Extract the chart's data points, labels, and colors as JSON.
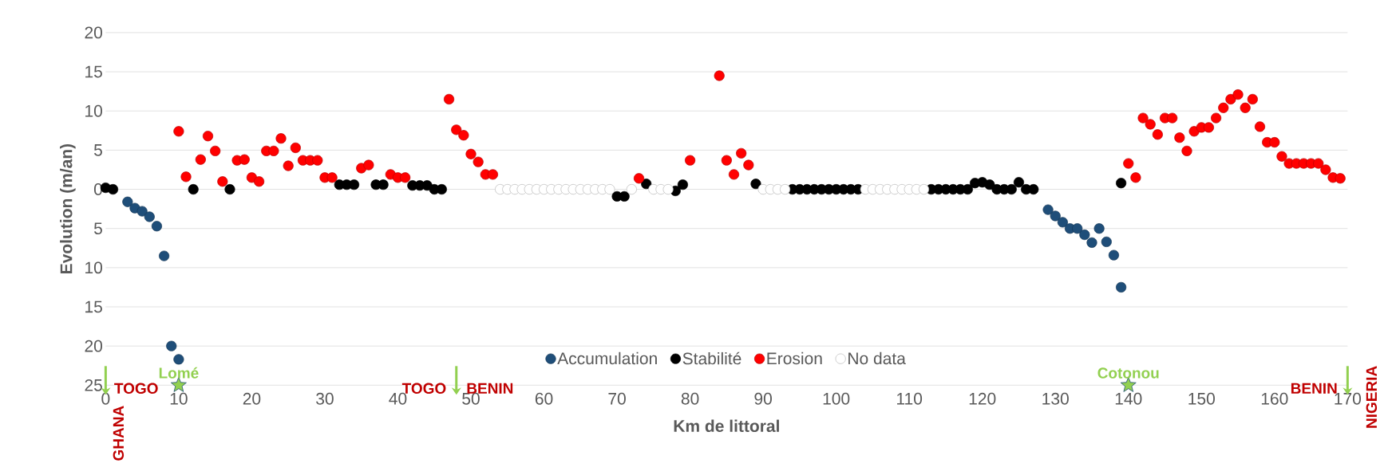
{
  "chart_data": {
    "type": "scatter",
    "xlabel": "Km de littoral",
    "ylabel": "Evolution (m/an)",
    "xlim": [
      0,
      170
    ],
    "xticks": [
      0,
      10,
      20,
      30,
      40,
      50,
      60,
      70,
      80,
      90,
      100,
      110,
      120,
      130,
      140,
      150,
      160,
      170
    ],
    "ylim": [
      -25,
      20
    ],
    "yticks": [
      {
        "value": -25,
        "label": "25"
      },
      {
        "value": -20,
        "label": "20"
      },
      {
        "value": -15,
        "label": "15"
      },
      {
        "value": -10,
        "label": "10"
      },
      {
        "value": -5,
        "label": "5"
      },
      0,
      5,
      10,
      15,
      20
    ],
    "grid": "y",
    "legend": "bottom",
    "marker": "circle",
    "series": [
      {
        "name": "Accumulation",
        "color": "#1f4e79",
        "x": [
          3,
          4,
          5,
          6,
          7,
          8,
          9,
          10,
          129,
          130,
          131,
          132,
          133,
          134,
          135,
          136,
          137,
          138,
          139
        ],
        "values": [
          -1.6,
          -2.4,
          -2.8,
          -3.5,
          -4.7,
          -8.5,
          -20,
          -21.7,
          -2.6,
          -3.4,
          -4.2,
          -5.0,
          -5.0,
          -5.8,
          -6.8,
          -5.0,
          -6.7,
          -8.4,
          -12.5
        ]
      },
      {
        "name": "Stabilité",
        "color": "#000000",
        "x": [
          0,
          1,
          12,
          17,
          32,
          33,
          34,
          37,
          38,
          42,
          43,
          44,
          45,
          46,
          70,
          71,
          74,
          78,
          79,
          89,
          94,
          95,
          96,
          97,
          98,
          99,
          100,
          101,
          102,
          103,
          113,
          114,
          115,
          116,
          117,
          118,
          119,
          120,
          121,
          122,
          123,
          124,
          125,
          126,
          127,
          139
        ],
        "values": [
          0.2,
          0,
          0,
          0,
          0.6,
          0.6,
          0.6,
          0.6,
          0.6,
          0.5,
          0.5,
          0.5,
          0,
          0,
          -0.9,
          -0.9,
          0.7,
          -0.2,
          0.6,
          0.7,
          0,
          0,
          0,
          0,
          0,
          0,
          0,
          0,
          0,
          0,
          0,
          0,
          0,
          0,
          0,
          0,
          0.8,
          0.9,
          0.6,
          0,
          0,
          0,
          0.9,
          0,
          0,
          0.8
        ]
      },
      {
        "name": "Erosion",
        "color": "#ff0000",
        "x": [
          10,
          11,
          13,
          14,
          15,
          16,
          18,
          19,
          20,
          21,
          22,
          23,
          24,
          25,
          26,
          27,
          28,
          29,
          30,
          31,
          35,
          36,
          39,
          40,
          41,
          47,
          48,
          49,
          50,
          51,
          52,
          53,
          73,
          80,
          84,
          85,
          86,
          87,
          88,
          140,
          141,
          142,
          143,
          144,
          145,
          146,
          147,
          148,
          149,
          150,
          151,
          152,
          153,
          154,
          155,
          156,
          157,
          158,
          159,
          160,
          161,
          162,
          163,
          164,
          165,
          166,
          167,
          168,
          169
        ],
        "values": [
          7.4,
          1.6,
          3.8,
          6.8,
          4.9,
          1.0,
          3.7,
          3.8,
          1.5,
          1.0,
          4.9,
          4.9,
          6.5,
          3.0,
          5.3,
          3.7,
          3.7,
          3.7,
          1.5,
          1.5,
          2.7,
          3.1,
          1.9,
          1.5,
          1.5,
          11.5,
          7.6,
          6.9,
          4.5,
          3.5,
          1.9,
          1.9,
          1.4,
          3.7,
          14.5,
          3.7,
          1.9,
          4.6,
          3.1,
          3.3,
          1.5,
          9.1,
          8.3,
          7.0,
          9.1,
          9.1,
          6.6,
          4.9,
          7.4,
          7.9,
          7.9,
          9.1,
          10.4,
          11.5,
          12.1,
          10.4,
          11.5,
          8.0,
          6.0,
          6.0,
          4.2,
          3.3,
          3.3,
          3.3,
          3.3,
          3.3,
          2.5,
          1.5,
          1.4
        ]
      },
      {
        "name": "No data",
        "color": "#ffffff",
        "x": [
          54,
          55,
          56,
          57,
          58,
          59,
          60,
          61,
          62,
          63,
          64,
          65,
          66,
          67,
          68,
          69,
          72,
          75,
          76,
          77,
          90,
          91,
          92,
          93,
          104,
          105,
          106,
          107,
          108,
          109,
          110,
          111,
          112
        ],
        "values": [
          0,
          0,
          0,
          0,
          0,
          0,
          0,
          0,
          0,
          0,
          0,
          0,
          0,
          0,
          0,
          0,
          0,
          0,
          0,
          0,
          0,
          0,
          0,
          0,
          0,
          0,
          0,
          0,
          0,
          0,
          0,
          0,
          0
        ]
      }
    ],
    "annotations": [
      "GHANA",
      "TOGO",
      {
        "text": "Lomé",
        "x": 10,
        "y": -25
      },
      "TOGO",
      "BENIN",
      {
        "text": "Cotonou",
        "x": 140,
        "y": -25
      },
      "BENIN",
      "NIGERIA"
    ]
  }
}
